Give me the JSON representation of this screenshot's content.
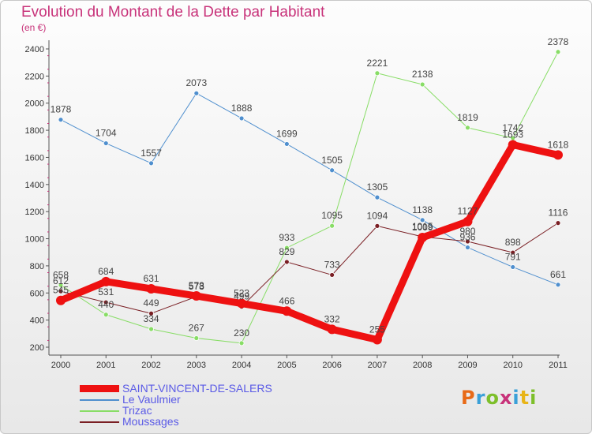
{
  "title": "Evolution du Montant de la Dette par Habitant",
  "subtitle": "(en €)",
  "logo": {
    "letters": [
      "P",
      "r",
      "o",
      "x",
      "i",
      "t",
      "i"
    ],
    "colors": [
      "#e86a17",
      "#3aa0d8",
      "#7dbf2a",
      "#c8337a",
      "#3aa0d8",
      "#e8b417",
      "#7dbf2a"
    ]
  },
  "chart_data": {
    "type": "line",
    "x": [
      2000,
      2001,
      2002,
      2003,
      2004,
      2005,
      2006,
      2007,
      2008,
      2009,
      2010,
      2011
    ],
    "ylim": [
      200,
      2400
    ],
    "yticks": [
      200,
      400,
      600,
      800,
      1000,
      1200,
      1400,
      1600,
      1800,
      2000,
      2200,
      2400
    ],
    "grid": false,
    "legend_position": "bottom-left",
    "series": [
      {
        "name": "SAINT-VINCENT-DE-SALERS",
        "color": "#ee1111",
        "width": 9,
        "marker": 6,
        "values": [
          545,
          684,
          631,
          578,
          523,
          466,
          332,
          255,
          1009,
          1127,
          1693,
          1618
        ],
        "labels": [
          "545",
          "684",
          "631",
          "578",
          "523",
          "466",
          "332",
          "255",
          "1009",
          "1127",
          "1693",
          "1618"
        ]
      },
      {
        "name": "Le Vaulmier",
        "color": "#4f8fce",
        "width": 1,
        "marker": 3,
        "values": [
          1878,
          1704,
          1557,
          2073,
          1888,
          1699,
          1505,
          1305,
          1138,
          936,
          791,
          661
        ],
        "labels": [
          "1878",
          "1704",
          "1557",
          "2073",
          "1888",
          "1699",
          "1505",
          "1305",
          "1138",
          "936",
          "791",
          "661"
        ]
      },
      {
        "name": "Trizac",
        "color": "#88dd66",
        "width": 1,
        "marker": 3,
        "values": [
          658,
          440,
          334,
          267,
          230,
          933,
          1095,
          2221,
          2138,
          1819,
          1742,
          2378
        ],
        "labels": [
          "658",
          "440",
          "334",
          "267",
          "230",
          "933",
          "1095",
          "2221",
          "2138",
          "1819",
          "1742",
          "2378"
        ]
      },
      {
        "name": "Moussages",
        "color": "#7a1f24",
        "width": 1,
        "marker": 3,
        "values": [
          612,
          531,
          449,
          573,
          499,
          829,
          733,
          1094,
          1015,
          980,
          898,
          1116
        ],
        "labels": [
          "612",
          "531",
          "449",
          "573",
          "499",
          "829",
          "733",
          "1094",
          "1015",
          "980",
          "898",
          "1116"
        ]
      }
    ]
  }
}
